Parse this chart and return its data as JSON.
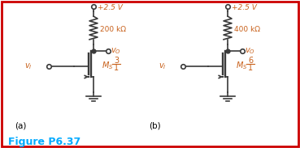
{
  "bg_color": "#ffffff",
  "border_color": "#cc0000",
  "text_color_orange": "#c8601a",
  "text_color_blue": "#00aaff",
  "title": "Figure P6.37",
  "circuit_a": {
    "label_a": "(a)",
    "vdd": "+2.5 V",
    "resistor": "200 kΩ",
    "ratio_num": "3",
    "ratio_den": "1"
  },
  "circuit_b": {
    "label_b": "(b)",
    "vdd": "+2.5 V",
    "resistor": "400 kΩ",
    "ratio_num": "6",
    "ratio_den": "1"
  }
}
